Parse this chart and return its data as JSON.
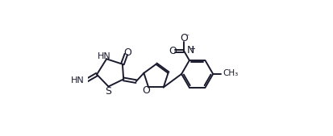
{
  "bg_color": "#ffffff",
  "line_color": "#1a1a2e",
  "line_width": 1.4,
  "figsize": [
    4.13,
    1.69
  ],
  "dpi": 100,
  "xlim": [
    0.0,
    1.05
  ],
  "ylim": [
    0.05,
    0.95
  ]
}
